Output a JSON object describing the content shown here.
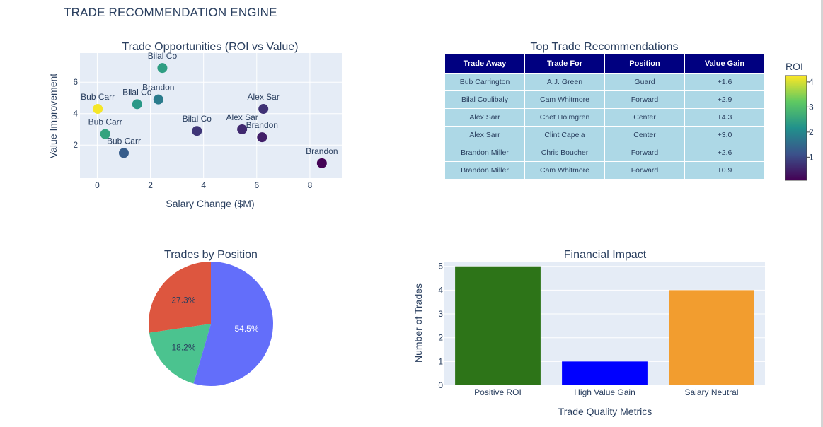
{
  "page": {
    "title": "TRADE RECOMMENDATION ENGINE"
  },
  "colors": {
    "plot_bg": "#e5ecf6",
    "grid": "#ffffff",
    "text": "#2a3f5f",
    "table_header_bg": "#000080",
    "table_header_text": "#ffffff",
    "table_cell_bg": "#add8e6",
    "colorscale": "Viridis"
  },
  "chart_data": [
    {
      "type": "scatter",
      "title": "Trade Opportunities (ROI vs Value)",
      "xlabel": "Salary Change ($M)",
      "ylabel": "Value Improvement",
      "xlim": [
        -0.65,
        9.2
      ],
      "ylim": [
        -0.1,
        7.85
      ],
      "xticks": [
        0,
        2,
        4,
        6,
        8
      ],
      "yticks": [
        2,
        4,
        6
      ],
      "grid": true,
      "color_by": "ROI",
      "colorbar": {
        "title": "ROI",
        "min": 0.08,
        "max": 4.25,
        "ticks": [
          1,
          2,
          3,
          4
        ],
        "position": "right"
      },
      "points": [
        {
          "x": 0.02,
          "y": 4.3,
          "roi": 4.2,
          "label": "Bub Carr",
          "label_pos": "top"
        },
        {
          "x": 0.3,
          "y": 2.7,
          "roi": 2.5,
          "label": "Bub Carr",
          "label_pos": "top"
        },
        {
          "x": 1.0,
          "y": 1.5,
          "roi": 1.3,
          "label": "Bub Carr",
          "label_pos": "top"
        },
        {
          "x": 1.5,
          "y": 4.6,
          "roi": 2.3,
          "label": "Bilal Co",
          "label_pos": "top"
        },
        {
          "x": 2.3,
          "y": 4.9,
          "roi": 1.8,
          "label": "Brandon",
          "label_pos": "top"
        },
        {
          "x": 2.45,
          "y": 6.9,
          "roi": 2.4,
          "label": "Bilal Co",
          "label_pos": "top"
        },
        {
          "x": 3.75,
          "y": 2.9,
          "roi": 0.75,
          "label": "Bilal Co",
          "label_pos": "top"
        },
        {
          "x": 5.45,
          "y": 3.0,
          "roi": 0.6,
          "label": "Alex Sar",
          "label_pos": "top"
        },
        {
          "x": 6.25,
          "y": 4.3,
          "roi": 0.7,
          "label": "Alex Sar",
          "label_pos": "top"
        },
        {
          "x": 6.2,
          "y": 2.5,
          "roi": 0.45,
          "label": "Brandon",
          "label_pos": "top"
        },
        {
          "x": 8.45,
          "y": 0.85,
          "roi": 0.1,
          "label": "Brandon",
          "label_pos": "top"
        }
      ]
    },
    {
      "type": "table",
      "title": "Top Trade Recommendations",
      "columns": [
        "Trade Away",
        "Trade For",
        "Position",
        "Value Gain"
      ],
      "rows": [
        [
          "Bub Carrington",
          "A.J. Green",
          "Guard",
          "+1.6"
        ],
        [
          "Bilal Coulibaly",
          "Cam Whitmore",
          "Forward",
          "+2.9"
        ],
        [
          "Alex Sarr",
          "Chet Holmgren",
          "Center",
          "+4.3"
        ],
        [
          "Alex Sarr",
          "Clint Capela",
          "Center",
          "+3.0"
        ],
        [
          "Brandon Miller",
          "Chris Boucher",
          "Forward",
          "+2.6"
        ],
        [
          "Brandon Miller",
          "Cam Whitmore",
          "Forward",
          "+0.9"
        ]
      ]
    },
    {
      "type": "pie",
      "title": "Trades by Position",
      "slices": [
        {
          "value": 54.5,
          "label": "54.5%",
          "color": "#636efa"
        },
        {
          "value": 18.2,
          "label": "18.2%",
          "color": "#4bc38f"
        },
        {
          "value": 27.3,
          "label": "27.3%",
          "color": "#dd563f"
        }
      ]
    },
    {
      "type": "bar",
      "title": "Financial Impact",
      "xlabel": "Trade Quality Metrics",
      "ylabel": "Number of Trades",
      "categories": [
        "Positive ROI",
        "High Value Gain",
        "Salary Neutral"
      ],
      "values": [
        5,
        1,
        4
      ],
      "colors": [
        "#2d7418",
        "#0000ff",
        "#f29d2f"
      ],
      "ylim": [
        0,
        5.2
      ],
      "yticks": [
        0,
        1,
        2,
        3,
        4,
        5
      ],
      "grid": true
    }
  ]
}
